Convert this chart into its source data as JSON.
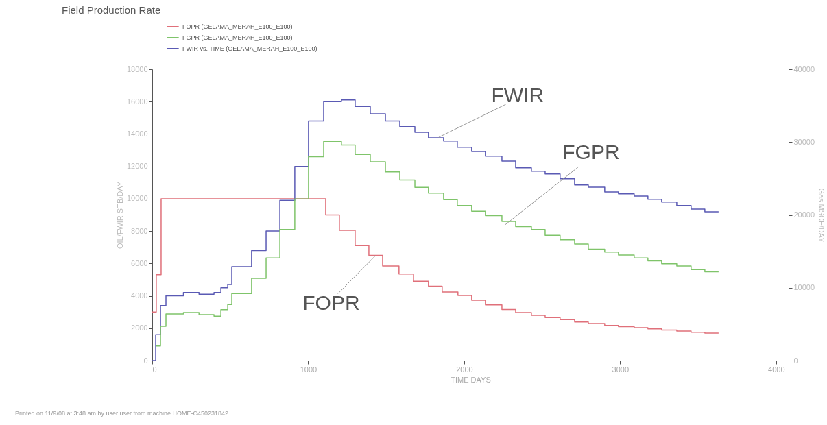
{
  "chart_data": {
    "type": "step",
    "title": "Field Production Rate",
    "xlabel": "TIME DAYS",
    "ylabel": "OIL/FWIR STB/DAY",
    "y2label": "Gas MSCF/DAY",
    "xlim": [
      0,
      4080
    ],
    "xticks": [
      0,
      1000,
      2000,
      3000,
      4000
    ],
    "ylim": [
      0,
      18000
    ],
    "yticks": [
      0,
      2000,
      4000,
      6000,
      8000,
      10000,
      12000,
      14000,
      16000,
      18000
    ],
    "y2lim": [
      0,
      40000
    ],
    "y2ticks": [
      0,
      10000,
      20000,
      30000,
      40000
    ],
    "legend": "top left",
    "grid": false,
    "line_style": "solid",
    "marker": "none",
    "series": [
      {
        "name": "FOPR (GELAMA_MERAH_E100_E100)",
        "color": "#e0707a",
        "x": [
          0,
          26,
          57,
          1112,
          1200,
          1301,
          1389,
          1477,
          1582,
          1675,
          1771,
          1859,
          1960,
          2048,
          2136,
          2242,
          2330,
          2431,
          2519,
          2615,
          2708,
          2796,
          2901,
          2989,
          3090,
          3178,
          3266,
          3363,
          3455,
          3543,
          3631
        ],
        "values": [
          3000,
          5300,
          10000,
          9000,
          8050,
          7100,
          6500,
          5850,
          5350,
          4900,
          4600,
          4240,
          4020,
          3730,
          3440,
          3160,
          2960,
          2800,
          2660,
          2530,
          2380,
          2290,
          2170,
          2100,
          2030,
          1960,
          1890,
          1820,
          1750,
          1690,
          1690
        ]
      },
      {
        "name": "FGPR (GELAMA_MERAH_E100_E100)",
        "color": "#7fc46a",
        "axis": "y2",
        "x": [
          22,
          53,
          88,
          200,
          300,
          396,
          440,
          484,
          510,
          637,
          730,
          818,
          914,
          1002,
          1099,
          1213,
          1301,
          1398,
          1495,
          1587,
          1684,
          1771,
          1868,
          1956,
          2048,
          2136,
          2242,
          2330,
          2431,
          2519,
          2615,
          2708,
          2796,
          2901,
          2989,
          3090,
          3178,
          3266,
          3363,
          3455,
          3543,
          3631
        ],
        "values": [
          2000,
          4700,
          6400,
          6600,
          6300,
          6100,
          7000,
          7700,
          9200,
          11300,
          14100,
          18000,
          22200,
          28000,
          30100,
          29600,
          28300,
          27300,
          25900,
          24800,
          23800,
          23000,
          22100,
          21300,
          20500,
          19900,
          19100,
          18400,
          18000,
          17200,
          16600,
          16000,
          15300,
          14900,
          14500,
          14100,
          13700,
          13300,
          13000,
          12500,
          12200,
          12200
        ]
      },
      {
        "name": "FWIR vs. TIME (GELAMA_MERAH_E100_E100)",
        "color": "#5a5ab4",
        "x": [
          0,
          22,
          53,
          88,
          200,
          300,
          396,
          440,
          484,
          510,
          637,
          730,
          818,
          914,
          1002,
          1099,
          1213,
          1301,
          1398,
          1495,
          1587,
          1684,
          1771,
          1868,
          1956,
          2048,
          2136,
          2242,
          2330,
          2431,
          2519,
          2615,
          2708,
          2796,
          2901,
          2989,
          3090,
          3178,
          3266,
          3363,
          3455,
          3543,
          3631
        ],
        "values": [
          0,
          1600,
          3400,
          4000,
          4200,
          4100,
          4200,
          4500,
          4700,
          5800,
          6800,
          8000,
          9900,
          12000,
          14800,
          16000,
          16100,
          15700,
          15250,
          14800,
          14450,
          14100,
          13770,
          13560,
          13180,
          12920,
          12630,
          12330,
          11910,
          11700,
          11530,
          11230,
          10850,
          10720,
          10420,
          10300,
          10170,
          9960,
          9790,
          9580,
          9360,
          9190,
          9190
        ]
      }
    ],
    "annotations": [
      {
        "text": "FWIR",
        "x": 1837,
        "y": 13800
      },
      {
        "text": "FGPR",
        "x": 2264,
        "y": 8400
      },
      {
        "text": "FOPR",
        "x": 1433,
        "y": 6500
      },
      "Printed on 11/9/08 at 3:48 am by user user from machine HOME-C450231842"
    ]
  }
}
